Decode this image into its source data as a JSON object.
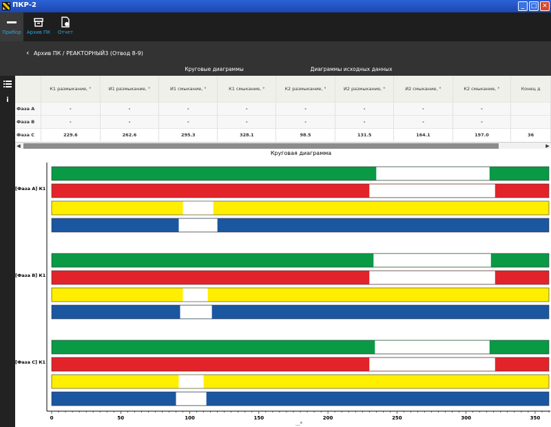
{
  "window": {
    "title": "ПКР-2",
    "minimize": "_",
    "maximize": "□",
    "close": "✕"
  },
  "toolbar": {
    "items": [
      "Прибор",
      "Архив ПК",
      "Отчет"
    ]
  },
  "breadcrumb": {
    "back": "‹",
    "text": "Архив ПК / РЕАКТОРНЫЙ3 (Отвод 8-9)"
  },
  "tabs": [
    "Круговые диаграммы",
    "Диаграммы исходных данных"
  ],
  "sidebar": {
    "list_icon": "list-icon",
    "info_icon": "info-icon",
    "info_glyph": "i"
  },
  "table": {
    "headers": [
      "К1 размыкание, °",
      "И1 размыкание, °",
      "И1 смыкание, °",
      "К1 смыкание, °",
      "К2 размыкание, °",
      "И2 размыкание, °",
      "И2 смыкание, °",
      "К2 смыкание, °",
      "Конец д"
    ],
    "rows": [
      {
        "label": "Фаза А",
        "cells": [
          "-",
          "-",
          "-",
          "-",
          "-",
          "-",
          "-",
          "-",
          ""
        ]
      },
      {
        "label": "Фаза В",
        "cells": [
          "-",
          "-",
          "-",
          "-",
          "-",
          "-",
          "-",
          "-",
          ""
        ]
      },
      {
        "label": "Фаза С",
        "cells": [
          "229.6",
          "262.6",
          "295.3",
          "328.1",
          "98.5",
          "131.5",
          "164.1",
          "197.0",
          "36"
        ]
      }
    ]
  },
  "scroll": {
    "left": "◀",
    "right": "▶"
  },
  "chart_data": {
    "type": "bar",
    "title": "Круговая диаграмма",
    "xlabel": "...°",
    "xlim": [
      0,
      360
    ],
    "xticks": [
      0,
      50,
      100,
      150,
      200,
      250,
      300,
      350
    ],
    "colors": {
      "green": "#0a9a45",
      "red": "#e3232a",
      "yellow": "#ffee00",
      "blue": "#1b56a0",
      "gap": "#ffffff"
    },
    "groups": [
      {
        "label": "[Фаза А]  К1",
        "bars": [
          {
            "color": "green",
            "gap": [
              235,
              317
            ]
          },
          {
            "color": "red",
            "gap": [
              230,
              321
            ]
          },
          {
            "color": "yellow",
            "gap": [
              95,
              117
            ]
          },
          {
            "color": "blue",
            "gap": [
              92,
              120
            ]
          }
        ]
      },
      {
        "label": "[Фаза В]  К1",
        "bars": [
          {
            "color": "green",
            "gap": [
              233,
              318
            ]
          },
          {
            "color": "red",
            "gap": [
              230,
              321
            ]
          },
          {
            "color": "yellow",
            "gap": [
              95,
              113
            ]
          },
          {
            "color": "blue",
            "gap": [
              93,
              116
            ]
          }
        ]
      },
      {
        "label": "[Фаза С]  К1",
        "bars": [
          {
            "color": "green",
            "gap": [
              234,
              317
            ]
          },
          {
            "color": "red",
            "gap": [
              230,
              321
            ]
          },
          {
            "color": "yellow",
            "gap": [
              92,
              110
            ]
          },
          {
            "color": "blue",
            "gap": [
              90,
              112
            ]
          }
        ]
      }
    ]
  }
}
